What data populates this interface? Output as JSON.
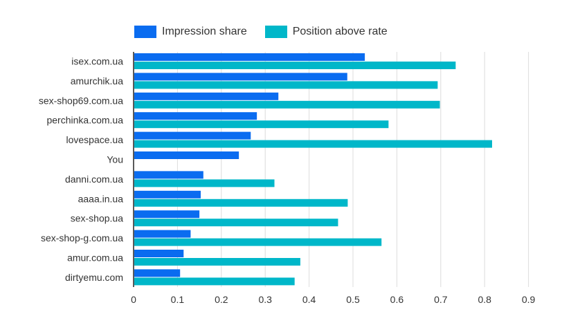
{
  "chart_data": {
    "type": "bar",
    "orientation": "horizontal",
    "categories": [
      "isex.com.ua",
      "amurchik.ua",
      "sex-shop69.com.ua",
      "perchinka.com.ua",
      "lovespace.ua",
      "You",
      "danni.com.ua",
      "aaaa.in.ua",
      "sex-shop.ua",
      "sex-shop-g.com.ua",
      "amur.com.ua",
      "dirtyemu.com"
    ],
    "series": [
      {
        "name": "Impression share",
        "color": "#0a6cf0",
        "values": [
          0.527,
          0.487,
          0.33,
          0.281,
          0.267,
          0.24,
          0.159,
          0.153,
          0.15,
          0.13,
          0.114,
          0.106
        ]
      },
      {
        "name": "Position above rate",
        "color": "#00b7c9",
        "values": [
          0.734,
          0.693,
          0.698,
          0.581,
          0.817,
          null,
          0.321,
          0.488,
          0.466,
          0.565,
          0.38,
          0.367
        ]
      }
    ],
    "x_ticks": [
      "0",
      "0.1",
      "0.2",
      "0.3",
      "0.4",
      "0.5",
      "0.6",
      "0.7",
      "0.8",
      "0.9"
    ],
    "xlim": [
      0,
      0.9
    ],
    "grid": true,
    "legend_position": "top-left"
  }
}
